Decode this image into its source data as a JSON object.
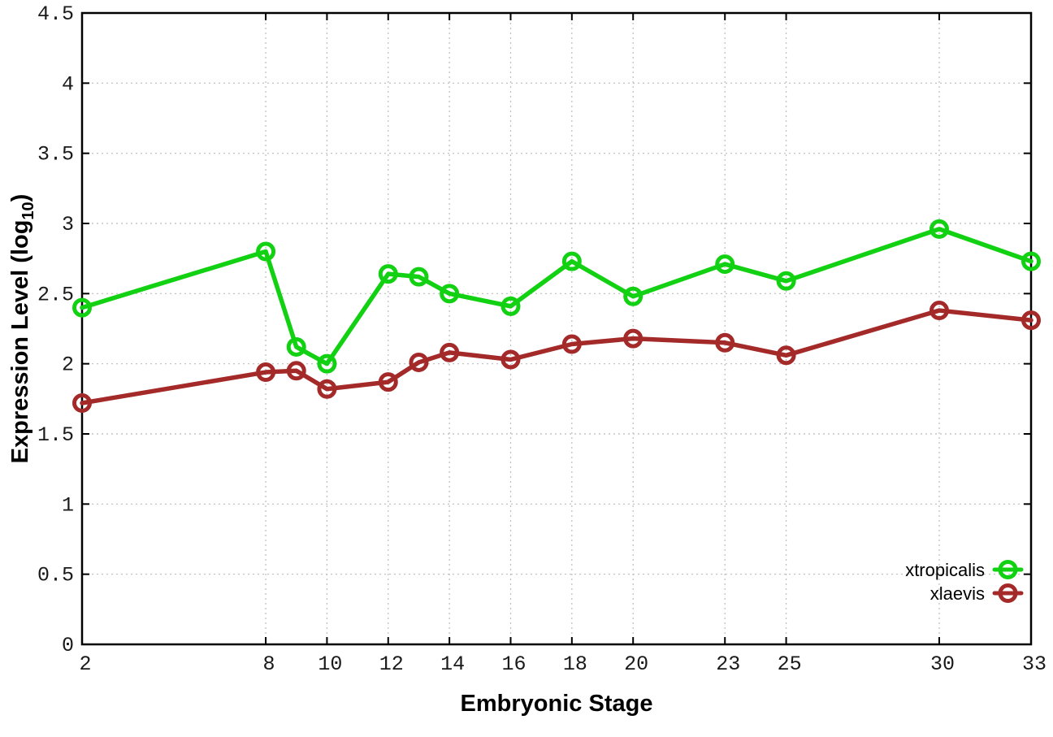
{
  "chart_data": {
    "type": "line",
    "title": "",
    "xlabel": "Embryonic Stage",
    "ylabel": "Expression Level (log10)",
    "ylabel_parts": {
      "base": "Expression Level (log",
      "sub": "10",
      "close": ")"
    },
    "x": [
      2,
      8,
      9,
      10,
      12,
      13,
      14,
      16,
      18,
      20,
      23,
      25,
      30,
      33
    ],
    "series": [
      {
        "name": "xtropicalis",
        "color": "#12d112",
        "values": [
          2.4,
          2.8,
          2.12,
          2.0,
          2.64,
          2.62,
          2.5,
          2.41,
          2.73,
          2.48,
          2.71,
          2.59,
          2.96,
          2.73
        ]
      },
      {
        "name": "xlaevis",
        "color": "#a42a2a",
        "values": [
          1.72,
          1.94,
          1.95,
          1.82,
          1.87,
          2.01,
          2.08,
          2.03,
          2.14,
          2.18,
          2.15,
          2.06,
          2.38,
          2.31
        ]
      }
    ],
    "xlim": [
      2,
      33
    ],
    "ylim": [
      0,
      4.5
    ],
    "x_ticks": [
      2,
      8,
      10,
      12,
      14,
      16,
      18,
      20,
      23,
      25,
      30,
      33
    ],
    "y_ticks": [
      0,
      0.5,
      1,
      1.5,
      2,
      2.5,
      3,
      3.5,
      4,
      4.5
    ],
    "y_tick_labels": [
      "0",
      "0.5",
      "1",
      "1.5",
      "2",
      "2.5",
      "3",
      "3.5",
      "4",
      "4.5"
    ],
    "grid": true,
    "legend_position": "inside-bottom-right",
    "marker": "open-circle",
    "colors": {
      "axis": "#000000",
      "grid": "#bcbcbc",
      "tick_text": "#1a1a1a",
      "background": "#ffffff"
    }
  }
}
